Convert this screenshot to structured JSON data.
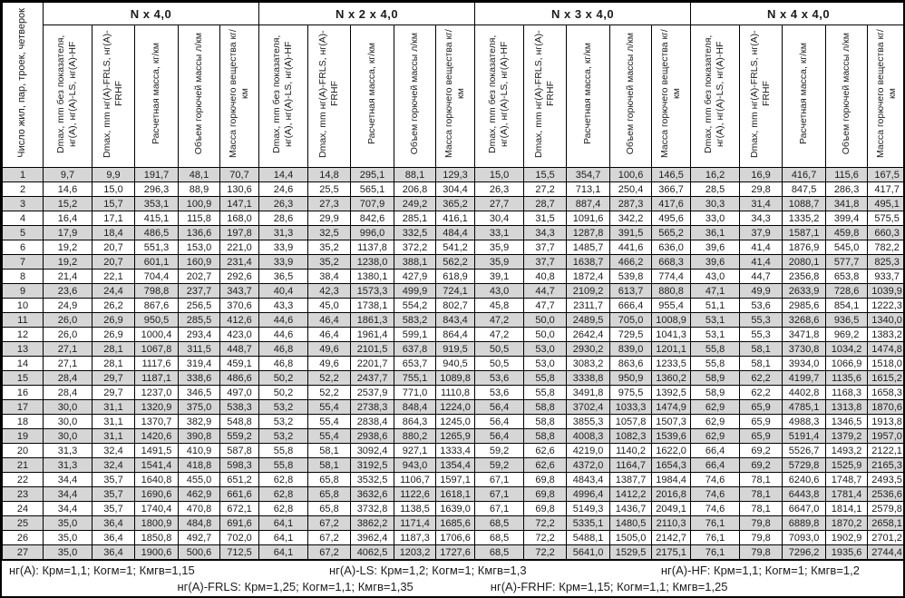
{
  "colors": {
    "stripe": "#d6d6d6",
    "border": "#000000",
    "text": "#1c1c1c",
    "background": "#ffffff"
  },
  "table": {
    "corner_header": "Число жил, пар, троек, четверок",
    "group_labels": [
      "N x 4,0",
      "N x 2 x 4,0",
      "N x 3 x 4,0",
      "N x 4 x 4,0"
    ],
    "sub_headers": [
      "Dmax, mm без показателя, нг(А), нг(А)-LS, нг(А)-HF",
      "Dmax, mm нг(А)-FRLS, нг(А)-FRHF",
      "Расчетная масса, кг/км",
      "Объем горючей массы л/км",
      "Масса горючего вещества кг/км"
    ],
    "rows": [
      [
        "1",
        "9,7",
        "9,9",
        "191,7",
        "48,1",
        "70,7",
        "14,4",
        "14,8",
        "295,1",
        "88,1",
        "129,3",
        "15,0",
        "15,5",
        "354,7",
        "100,6",
        "146,5",
        "16,2",
        "16,9",
        "416,7",
        "115,6",
        "167,5"
      ],
      [
        "2",
        "14,6",
        "15,0",
        "296,3",
        "88,9",
        "130,6",
        "24,6",
        "25,5",
        "565,1",
        "206,8",
        "304,4",
        "26,3",
        "27,2",
        "713,1",
        "250,4",
        "366,7",
        "28,5",
        "29,8",
        "847,5",
        "286,3",
        "417,7"
      ],
      [
        "3",
        "15,2",
        "15,7",
        "353,1",
        "100,9",
        "147,1",
        "26,3",
        "27,3",
        "707,9",
        "249,2",
        "365,2",
        "27,7",
        "28,7",
        "887,4",
        "287,3",
        "417,6",
        "30,3",
        "31,4",
        "1088,7",
        "341,8",
        "495,1"
      ],
      [
        "4",
        "16,4",
        "17,1",
        "415,1",
        "115,8",
        "168,0",
        "28,6",
        "29,9",
        "842,6",
        "285,1",
        "416,1",
        "30,4",
        "31,5",
        "1091,6",
        "342,2",
        "495,6",
        "33,0",
        "34,3",
        "1335,2",
        "399,4",
        "575,5"
      ],
      [
        "5",
        "17,9",
        "18,4",
        "486,5",
        "136,6",
        "197,8",
        "31,3",
        "32,5",
        "996,0",
        "332,5",
        "484,4",
        "33,1",
        "34,3",
        "1287,8",
        "391,5",
        "565,2",
        "36,1",
        "37,9",
        "1587,1",
        "459,8",
        "660,3"
      ],
      [
        "6",
        "19,2",
        "20,7",
        "551,3",
        "153,0",
        "221,0",
        "33,9",
        "35,2",
        "1137,8",
        "372,2",
        "541,2",
        "35,9",
        "37,7",
        "1485,7",
        "441,6",
        "636,0",
        "39,6",
        "41,4",
        "1876,9",
        "545,0",
        "782,2"
      ],
      [
        "7",
        "19,2",
        "20,7",
        "601,1",
        "160,9",
        "231,4",
        "33,9",
        "35,2",
        "1238,0",
        "388,1",
        "562,2",
        "35,9",
        "37,7",
        "1638,7",
        "466,2",
        "668,3",
        "39,6",
        "41,4",
        "2080,1",
        "577,7",
        "825,3"
      ],
      [
        "8",
        "21,4",
        "22,1",
        "704,4",
        "202,7",
        "292,6",
        "36,5",
        "38,4",
        "1380,1",
        "427,9",
        "618,9",
        "39,1",
        "40,8",
        "1872,4",
        "539,8",
        "774,4",
        "43,0",
        "44,7",
        "2356,8",
        "653,8",
        "933,7"
      ],
      [
        "9",
        "23,6",
        "24,4",
        "798,8",
        "237,7",
        "343,7",
        "40,4",
        "42,3",
        "1573,3",
        "499,9",
        "724,1",
        "43,0",
        "44,7",
        "2109,2",
        "613,7",
        "880,8",
        "47,1",
        "49,9",
        "2633,9",
        "728,6",
        "1039,9"
      ],
      [
        "10",
        "24,9",
        "26,2",
        "867,6",
        "256,5",
        "370,6",
        "43,3",
        "45,0",
        "1738,1",
        "554,2",
        "802,7",
        "45,8",
        "47,7",
        "2311,7",
        "666,4",
        "955,4",
        "51,1",
        "53,6",
        "2985,6",
        "854,1",
        "1222,3"
      ],
      [
        "11",
        "26,0",
        "26,9",
        "950,5",
        "285,5",
        "412,6",
        "44,6",
        "46,4",
        "1861,3",
        "583,2",
        "843,4",
        "47,2",
        "50,0",
        "2489,5",
        "705,0",
        "1008,9",
        "53,1",
        "55,3",
        "3268,6",
        "936,5",
        "1340,0"
      ],
      [
        "12",
        "26,0",
        "26,9",
        "1000,4",
        "293,4",
        "423,0",
        "44,6",
        "46,4",
        "1961,4",
        "599,1",
        "864,4",
        "47,2",
        "50,0",
        "2642,4",
        "729,5",
        "1041,3",
        "53,1",
        "55,3",
        "3471,8",
        "969,2",
        "1383,2"
      ],
      [
        "13",
        "27,1",
        "28,1",
        "1067,8",
        "311,5",
        "448,7",
        "46,8",
        "49,6",
        "2101,5",
        "637,8",
        "919,5",
        "50,5",
        "53,0",
        "2930,2",
        "839,0",
        "1201,1",
        "55,8",
        "58,1",
        "3730,8",
        "1034,2",
        "1474,8"
      ],
      [
        "14",
        "27,1",
        "28,1",
        "1117,6",
        "319,4",
        "459,1",
        "46,8",
        "49,6",
        "2201,7",
        "653,7",
        "940,5",
        "50,5",
        "53,0",
        "3083,2",
        "863,6",
        "1233,5",
        "55,8",
        "58,1",
        "3934,0",
        "1066,9",
        "1518,0"
      ],
      [
        "15",
        "28,4",
        "29,7",
        "1187,1",
        "338,6",
        "486,6",
        "50,2",
        "52,2",
        "2437,7",
        "755,1",
        "1089,8",
        "53,6",
        "55,8",
        "3338,8",
        "950,9",
        "1360,2",
        "58,9",
        "62,2",
        "4199,7",
        "1135,6",
        "1615,2"
      ],
      [
        "16",
        "28,4",
        "29,7",
        "1237,0",
        "346,5",
        "497,0",
        "50,2",
        "52,2",
        "2537,9",
        "771,0",
        "1110,8",
        "53,6",
        "55,8",
        "3491,8",
        "975,5",
        "1392,5",
        "58,9",
        "62,2",
        "4402,8",
        "1168,3",
        "1658,3"
      ],
      [
        "17",
        "30,0",
        "31,1",
        "1320,9",
        "375,0",
        "538,3",
        "53,2",
        "55,4",
        "2738,3",
        "848,4",
        "1224,0",
        "56,4",
        "58,8",
        "3702,4",
        "1033,3",
        "1474,9",
        "62,9",
        "65,9",
        "4785,1",
        "1313,8",
        "1870,6"
      ],
      [
        "18",
        "30,0",
        "31,1",
        "1370,7",
        "382,9",
        "548,8",
        "53,2",
        "55,4",
        "2838,4",
        "864,3",
        "1245,0",
        "56,4",
        "58,8",
        "3855,3",
        "1057,8",
        "1507,3",
        "62,9",
        "65,9",
        "4988,3",
        "1346,5",
        "1913,8"
      ],
      [
        "19",
        "30,0",
        "31,1",
        "1420,6",
        "390,8",
        "559,2",
        "53,2",
        "55,4",
        "2938,6",
        "880,2",
        "1265,9",
        "56,4",
        "58,8",
        "4008,3",
        "1082,3",
        "1539,6",
        "62,9",
        "65,9",
        "5191,4",
        "1379,2",
        "1957,0"
      ],
      [
        "20",
        "31,3",
        "32,4",
        "1491,5",
        "410,9",
        "587,8",
        "55,8",
        "58,1",
        "3092,4",
        "927,1",
        "1333,4",
        "59,2",
        "62,6",
        "4219,0",
        "1140,2",
        "1622,0",
        "66,4",
        "69,2",
        "5526,7",
        "1493,2",
        "2122,1"
      ],
      [
        "21",
        "31,3",
        "32,4",
        "1541,4",
        "418,8",
        "598,3",
        "55,8",
        "58,1",
        "3192,5",
        "943,0",
        "1354,4",
        "59,2",
        "62,6",
        "4372,0",
        "1164,7",
        "1654,3",
        "66,4",
        "69,2",
        "5729,8",
        "1525,9",
        "2165,3"
      ],
      [
        "22",
        "34,4",
        "35,7",
        "1640,8",
        "455,0",
        "651,2",
        "62,8",
        "65,8",
        "3532,5",
        "1106,7",
        "1597,1",
        "67,1",
        "69,8",
        "4843,4",
        "1387,7",
        "1984,4",
        "74,6",
        "78,1",
        "6240,6",
        "1748,7",
        "2493,5"
      ],
      [
        "23",
        "34,4",
        "35,7",
        "1690,6",
        "462,9",
        "661,6",
        "62,8",
        "65,8",
        "3632,6",
        "1122,6",
        "1618,1",
        "67,1",
        "69,8",
        "4996,4",
        "1412,2",
        "2016,8",
        "74,6",
        "78,1",
        "6443,8",
        "1781,4",
        "2536,6"
      ],
      [
        "24",
        "34,4",
        "35,7",
        "1740,4",
        "470,8",
        "672,1",
        "62,8",
        "65,8",
        "3732,8",
        "1138,5",
        "1639,0",
        "67,1",
        "69,8",
        "5149,3",
        "1436,7",
        "2049,1",
        "74,6",
        "78,1",
        "6647,0",
        "1814,1",
        "2579,8"
      ],
      [
        "25",
        "35,0",
        "36,4",
        "1800,9",
        "484,8",
        "691,6",
        "64,1",
        "67,2",
        "3862,2",
        "1171,4",
        "1685,6",
        "68,5",
        "72,2",
        "5335,1",
        "1480,5",
        "2110,3",
        "76,1",
        "79,8",
        "6889,8",
        "1870,2",
        "2658,1"
      ],
      [
        "26",
        "35,0",
        "36,4",
        "1850,8",
        "492,7",
        "702,0",
        "64,1",
        "67,2",
        "3962,4",
        "1187,3",
        "1706,6",
        "68,5",
        "72,2",
        "5488,1",
        "1505,0",
        "2142,7",
        "76,1",
        "79,8",
        "7093,0",
        "1902,9",
        "2701,2"
      ],
      [
        "27",
        "35,0",
        "36,4",
        "1900,6",
        "500,6",
        "712,5",
        "64,1",
        "67,2",
        "4062,5",
        "1203,2",
        "1727,6",
        "68,5",
        "72,2",
        "5641,0",
        "1529,5",
        "2175,1",
        "76,1",
        "79,8",
        "7296,2",
        "1935,6",
        "2744,4"
      ]
    ]
  },
  "footer": {
    "line1": [
      "нг(А): Крм=1,1;  Когм=1;  Кмгв=1,15",
      "нг(А)-LS: Крм=1,2;  Когм=1;  Кмгв=1,3",
      "нг(А)-HF: Крм=1,1;  Когм=1;  Кмгв=1,2"
    ],
    "line2": [
      "нг(А)-FRLS: Крм=1,25;  Когм=1,1;  Кмгв=1,35",
      "нг(А)-FRHF: Крм=1,15;  Когм=1,1;  Кмгв=1,25"
    ]
  }
}
